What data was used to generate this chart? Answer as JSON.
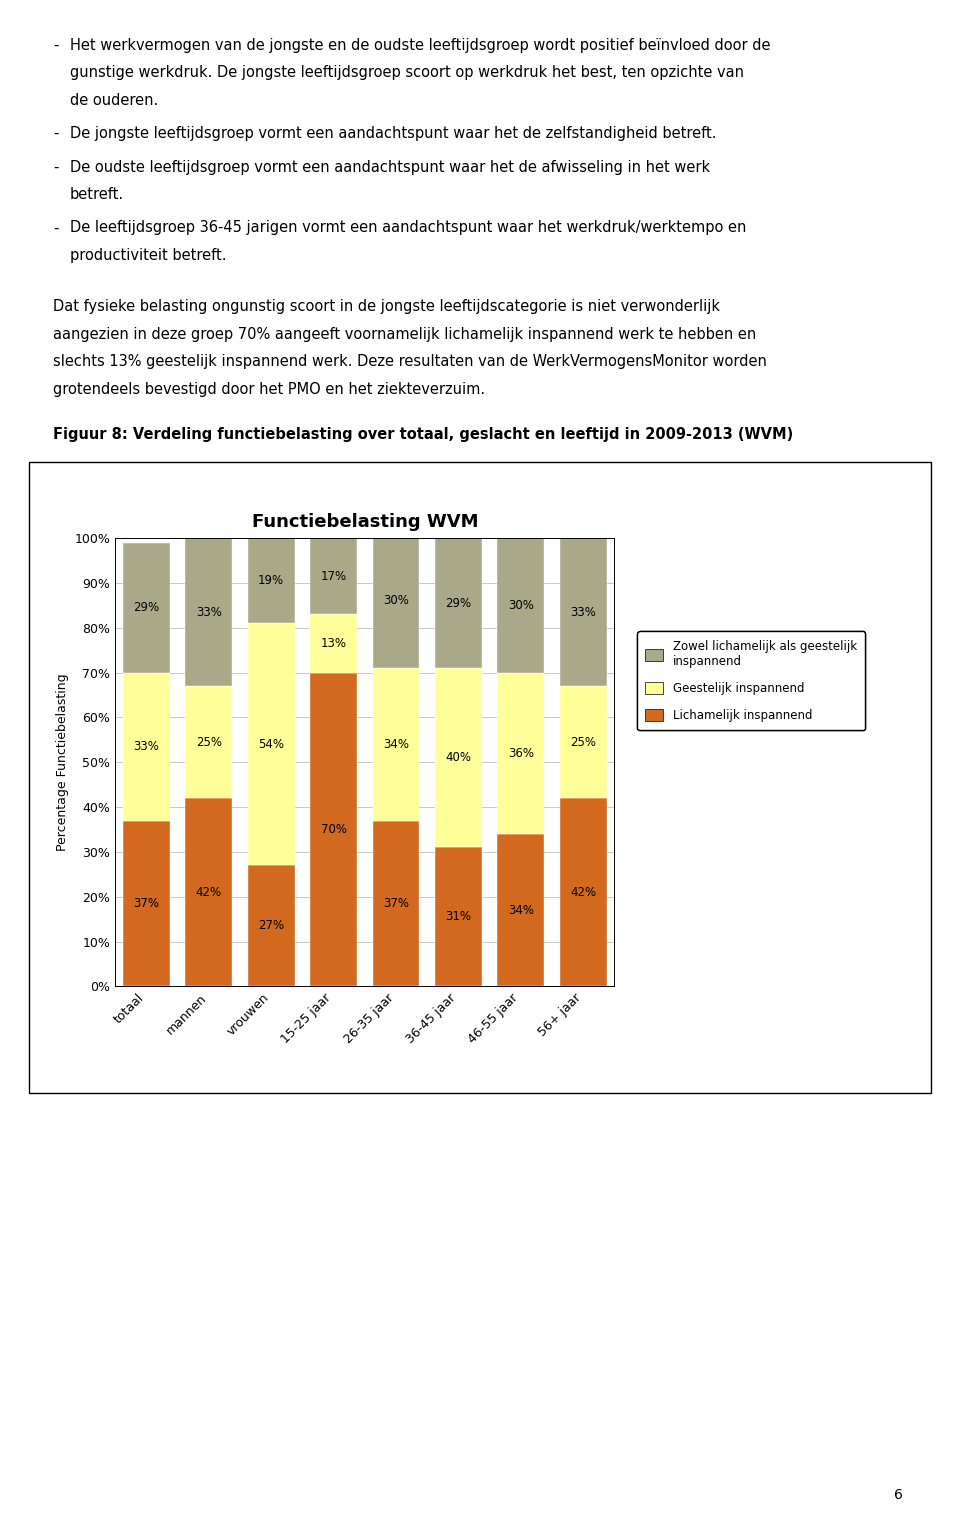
{
  "title": "Functiebelasting WVM",
  "figure_title": "Figuur 8: Verdeling functiebelasting over totaal, geslacht en leeftijd in 2009-2013 (WVM)",
  "ylabel": "Percentage Functiebelasting",
  "categories": [
    "totaal",
    "mannen",
    "vrouwen",
    "15-25 jaar",
    "26-35 jaar",
    "36-45 jaar",
    "46-55 jaar",
    "56+ jaar"
  ],
  "lichamelijk": [
    37,
    42,
    27,
    70,
    37,
    31,
    34,
    42
  ],
  "geestelijk": [
    33,
    25,
    54,
    13,
    34,
    40,
    36,
    25
  ],
  "zowel": [
    29,
    33,
    19,
    17,
    30,
    29,
    30,
    33
  ],
  "colors": {
    "lichamelijk": "#D2691E",
    "geestelijk": "#FFFF99",
    "zowel": "#A9A98A"
  },
  "legend_labels": [
    "Zowel lichamelijk als geestelijk\ninspannend",
    "Geestelijk inspannend",
    "Lichamelijk inspannend"
  ],
  "bullet_points": [
    "Het werkvermogen van de jongste en de oudste leeftijdsgroep wordt positief beïnvloed door de gunstige werkdruk.  De jongste leeftijdsgroep scoort op werkdruk het best, ten opzichte van de ouderen.",
    "De jongste leeftijdsgroep vormt een aandachtspunt waar het de zelfstandigheid betreft.",
    "De oudste leeftijdsgroep vormt een aandachtspunt waar het de afwisseling in het werk betreft.",
    "De leeftijdsgroep 36-45 jarigen vormt een aandachtspunt waar het werkdruk/werktempo en productiviteit betreft."
  ],
  "paragraph": "Dat fysieke belasting ongunstig scoort in de jongste leeftijdscategorie is niet verwonderlijk aangezien in deze groep 70% aangeeft voornamelijk  lichamelijk inspannend werk te hebben en slechts 13% geestelijk inspannend werk. Deze resultaten van de WerkVermogensMonitor worden grotendeels bevestigd door het PMO en het ziekteverzuim.",
  "page_number": "6",
  "text_fontsize": 10.5,
  "title_fontsize": 13,
  "ylabel_fontsize": 9,
  "tick_fontsize": 9,
  "bar_label_fontsize": 8.5,
  "legend_fontsize": 8.5
}
